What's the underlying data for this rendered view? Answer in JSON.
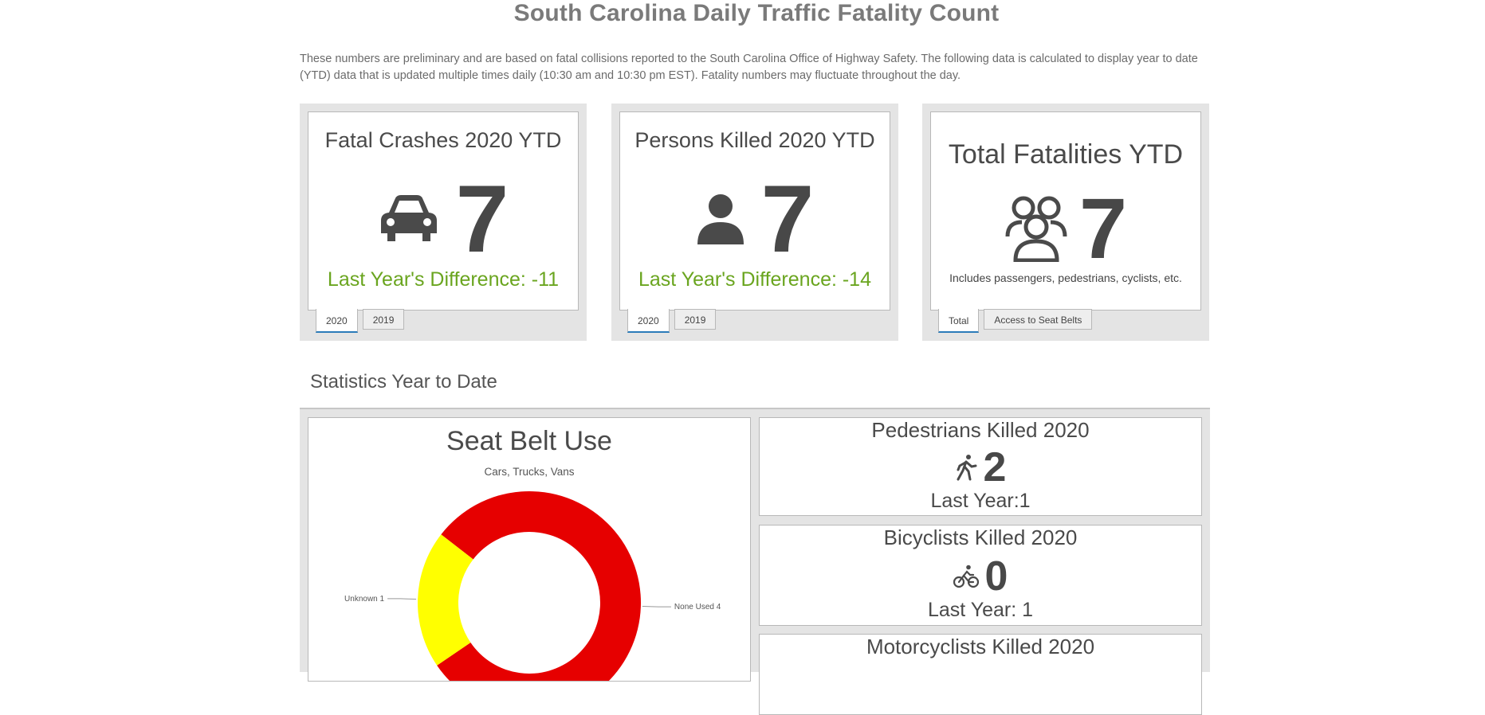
{
  "page": {
    "title": "South Carolina Daily Traffic Fatality Count",
    "intro": "These numbers are preliminary and are based on fatal collisions reported to the South Carolina Office of Highway Safety. The following data is calculated to display year to date (YTD) data that is updated multiple times daily (10:30 am and 10:30 pm EST). Fatality numbers may fluctuate throughout the day."
  },
  "cards": [
    {
      "title": "Fatal Crashes 2020 YTD",
      "icon": "car-icon",
      "value": "7",
      "diff": "Last Year's Difference: -11",
      "tabs": [
        "2020",
        "2019"
      ],
      "active_tab": "2020"
    },
    {
      "title": "Persons Killed 2020 YTD",
      "icon": "person-icon",
      "value": "7",
      "diff": "Last Year's Difference: -14",
      "tabs": [
        "2020",
        "2019"
      ],
      "active_tab": "2020"
    },
    {
      "title": "Total Fatalities YTD",
      "icon": "group-icon",
      "value": "7",
      "note": "Includes passengers, pedestrians, cyclists, etc.",
      "tabs": [
        "Total",
        "Access to Seat Belts"
      ],
      "active_tab": "Total"
    }
  ],
  "section": {
    "title": "Statistics Year to Date"
  },
  "seatbelt": {
    "title": "Seat Belt Use",
    "subtitle": "Cars, Trucks, Vans"
  },
  "chart_data": {
    "type": "pie",
    "title": "Seat Belt Use",
    "subtitle": "Cars, Trucks, Vans",
    "slices": [
      {
        "label": "None Used",
        "value": 4,
        "color": "#e60000"
      },
      {
        "label": "Unknown",
        "value": 1,
        "color": "#ffff00"
      }
    ],
    "labels": [
      "Unknown 1",
      "None Used 4"
    ]
  },
  "stats": [
    {
      "title": "Pedestrians Killed 2020",
      "icon": "pedestrian-icon",
      "value": "2",
      "last": "Last Year:1"
    },
    {
      "title": "Bicyclists Killed 2020",
      "icon": "bicycle-icon",
      "value": "0",
      "last": "Last Year: 1"
    },
    {
      "title": "Motorcyclists Killed 2020"
    }
  ]
}
